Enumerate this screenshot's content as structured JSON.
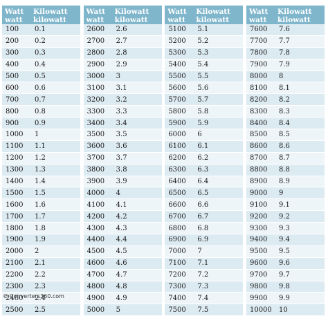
{
  "headers": {
    "watt": "Watt",
    "watt_unit": "watt",
    "kw": "Kilowatt",
    "kw_unit": "kilowatt"
  },
  "columns": [
    [
      [
        "100",
        "0.1"
      ],
      [
        "200",
        "0.2"
      ],
      [
        "300",
        "0.3"
      ],
      [
        "400",
        "0.4"
      ],
      [
        "500",
        "0.5"
      ],
      [
        "600",
        "0.6"
      ],
      [
        "700",
        "0.7"
      ],
      [
        "800",
        "0.8"
      ],
      [
        "900",
        "0.9"
      ],
      [
        "1000",
        "1"
      ],
      [
        "1100",
        "1.1"
      ],
      [
        "1200",
        "1.2"
      ],
      [
        "1300",
        "1.3"
      ],
      [
        "1400",
        "1.4"
      ],
      [
        "1500",
        "1.5"
      ],
      [
        "1600",
        "1.6"
      ],
      [
        "1700",
        "1.7"
      ],
      [
        "1800",
        "1.8"
      ],
      [
        "1900",
        "1.9"
      ],
      [
        "2000",
        "2"
      ],
      [
        "2100",
        "2.1"
      ],
      [
        "2200",
        "2.2"
      ],
      [
        "2300",
        "2.3"
      ],
      [
        "2400",
        "2.4"
      ],
      [
        "2500",
        "2.5"
      ]
    ],
    [
      [
        "2600",
        "2.6"
      ],
      [
        "2700",
        "2.7"
      ],
      [
        "2800",
        "2.8"
      ],
      [
        "2900",
        "2.9"
      ],
      [
        "3000",
        "3"
      ],
      [
        "3100",
        "3.1"
      ],
      [
        "3200",
        "3.2"
      ],
      [
        "3300",
        "3.3"
      ],
      [
        "3400",
        "3.4"
      ],
      [
        "3500",
        "3.5"
      ],
      [
        "3600",
        "3.6"
      ],
      [
        "3700",
        "3.7"
      ],
      [
        "3800",
        "3.8"
      ],
      [
        "3900",
        "3.9"
      ],
      [
        "4000",
        "4"
      ],
      [
        "4100",
        "4.1"
      ],
      [
        "4200",
        "4.2"
      ],
      [
        "4300",
        "4.3"
      ],
      [
        "4400",
        "4.4"
      ],
      [
        "4500",
        "4.5"
      ],
      [
        "4600",
        "4.6"
      ],
      [
        "4700",
        "4.7"
      ],
      [
        "4800",
        "4.8"
      ],
      [
        "4900",
        "4.9"
      ],
      [
        "5000",
        "5"
      ]
    ],
    [
      [
        "5100",
        "5.1"
      ],
      [
        "5200",
        "5.2"
      ],
      [
        "5300",
        "5.3"
      ],
      [
        "5400",
        "5.4"
      ],
      [
        "5500",
        "5.5"
      ],
      [
        "5600",
        "5.6"
      ],
      [
        "5700",
        "5.7"
      ],
      [
        "5800",
        "5.8"
      ],
      [
        "5900",
        "5.9"
      ],
      [
        "6000",
        "6"
      ],
      [
        "6100",
        "6.1"
      ],
      [
        "6200",
        "6.2"
      ],
      [
        "6300",
        "6.3"
      ],
      [
        "6400",
        "6.4"
      ],
      [
        "6500",
        "6.5"
      ],
      [
        "6600",
        "6.6"
      ],
      [
        "6700",
        "6.7"
      ],
      [
        "6800",
        "6.8"
      ],
      [
        "6900",
        "6.9"
      ],
      [
        "7000",
        "7"
      ],
      [
        "7100",
        "7.1"
      ],
      [
        "7200",
        "7.2"
      ],
      [
        "7300",
        "7.3"
      ],
      [
        "7400",
        "7.4"
      ],
      [
        "7500",
        "7.5"
      ]
    ],
    [
      [
        "7600",
        "7.6"
      ],
      [
        "7700",
        "7.7"
      ],
      [
        "7800",
        "7.8"
      ],
      [
        "7900",
        "7.9"
      ],
      [
        "8000",
        "8"
      ],
      [
        "8100",
        "8.1"
      ],
      [
        "8200",
        "8.2"
      ],
      [
        "8300",
        "8.3"
      ],
      [
        "8400",
        "8.4"
      ],
      [
        "8500",
        "8.5"
      ],
      [
        "8600",
        "8.6"
      ],
      [
        "8700",
        "8.7"
      ],
      [
        "8800",
        "8.8"
      ],
      [
        "8900",
        "8.9"
      ],
      [
        "9000",
        "9"
      ],
      [
        "9100",
        "9.1"
      ],
      [
        "9200",
        "9.2"
      ],
      [
        "9300",
        "9.3"
      ],
      [
        "9400",
        "9.4"
      ],
      [
        "9500",
        "9.5"
      ],
      [
        "9600",
        "9.6"
      ],
      [
        "9700",
        "9.7"
      ],
      [
        "9800",
        "9.8"
      ],
      [
        "9900",
        "9.9"
      ],
      [
        "10000",
        "10"
      ]
    ]
  ],
  "footer": {
    "copyright_symbol": "©",
    "text": "Converters360.com"
  },
  "colors": {
    "header_bg": "#7fb6cc",
    "row_odd": "#dceaf1",
    "row_even": "#eef5f8"
  }
}
